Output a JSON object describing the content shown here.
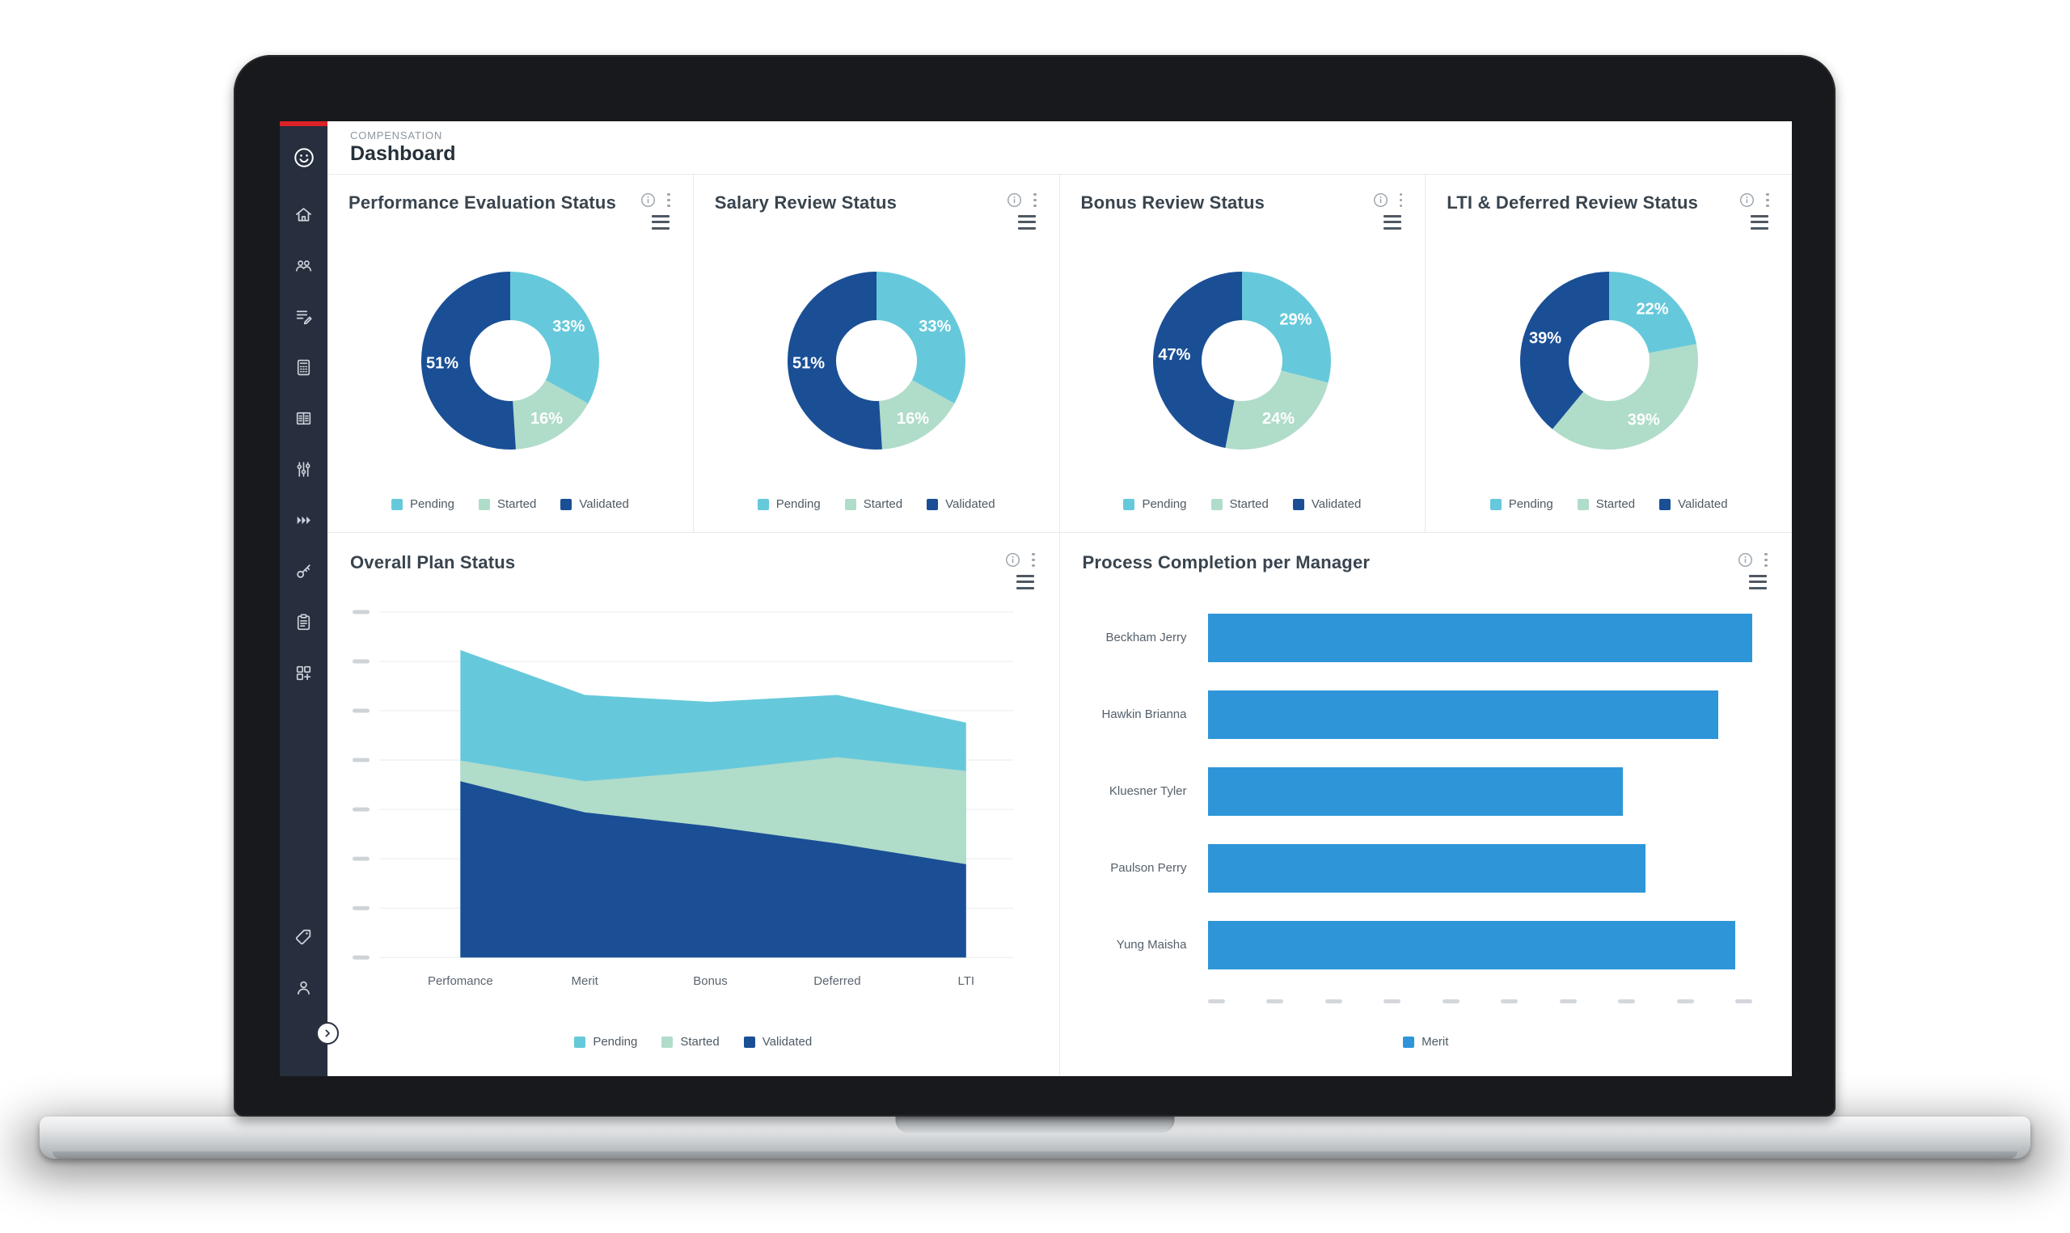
{
  "header": {
    "eyebrow": "COMPENSATION",
    "title": "Dashboard"
  },
  "colors": {
    "pending": "#66c9db",
    "started": "#b0dcca",
    "validated": "#1a4f96",
    "bar": "#2e96d8",
    "sidebar": "#272e3e",
    "accent": "#dc2127"
  },
  "legend": [
    "Pending",
    "Started",
    "Validated"
  ],
  "sidebar": {
    "items": [
      "smiley-logo",
      "home",
      "team",
      "document-review",
      "calculator",
      "table-columns",
      "filter-sliders",
      "fast-forward",
      "key",
      "clipboard",
      "widgets",
      "tag",
      "user"
    ],
    "expand": "chevron-right"
  },
  "chart_data": [
    {
      "type": "pie",
      "donut": true,
      "title": "Performance Evaluation Status",
      "labels": [
        "Pending",
        "Started",
        "Validated"
      ],
      "values": [
        33,
        16,
        51
      ],
      "value_suffix": "%",
      "colors": [
        "#66c9db",
        "#b0dcca",
        "#1a4f96"
      ],
      "legend_position": "bottom"
    },
    {
      "type": "pie",
      "donut": true,
      "title": "Salary Review Status",
      "labels": [
        "Pending",
        "Started",
        "Validated"
      ],
      "values": [
        33,
        16,
        51
      ],
      "value_suffix": "%",
      "colors": [
        "#66c9db",
        "#b0dcca",
        "#1a4f96"
      ],
      "legend_position": "bottom"
    },
    {
      "type": "pie",
      "donut": true,
      "title": "Bonus Review Status",
      "labels": [
        "Pending",
        "Started",
        "Validated"
      ],
      "values": [
        29,
        24,
        47
      ],
      "value_suffix": "%",
      "colors": [
        "#66c9db",
        "#b0dcca",
        "#1a4f96"
      ],
      "legend_position": "bottom"
    },
    {
      "type": "pie",
      "donut": true,
      "title": "LTI & Deferred Review Status",
      "labels": [
        "Pending",
        "Started",
        "Validated"
      ],
      "values": [
        22,
        39,
        39
      ],
      "value_suffix": "%",
      "colors": [
        "#66c9db",
        "#b0dcca",
        "#1a4f96"
      ],
      "legend_position": "bottom"
    },
    {
      "type": "area",
      "stacked": true,
      "title": "Overall Plan Status",
      "categories": [
        "Perfomance",
        "Merit",
        "Bonus",
        "Deferred",
        "LTI"
      ],
      "series": [
        {
          "name": "Pending",
          "values": [
            32,
            25,
            20,
            18,
            14
          ]
        },
        {
          "name": "Started",
          "values": [
            6,
            9,
            16,
            25,
            27
          ]
        },
        {
          "name": "Validated",
          "values": [
            51,
            42,
            38,
            33,
            27
          ]
        }
      ],
      "ylim": [
        0,
        100
      ],
      "grid": true,
      "legend_position": "bottom"
    },
    {
      "type": "bar",
      "orientation": "horizontal",
      "title": "Process Completion per Manager",
      "categories": [
        "Beckham Jerry",
        "Hawkin Brianna",
        "Kluesner Tyler",
        "Paulson Perry",
        "Yung Maisha"
      ],
      "series": [
        {
          "name": "Merit",
          "values": [
            97,
            91,
            74,
            78,
            94
          ]
        }
      ],
      "xlim": [
        0,
        100
      ],
      "legend_position": "bottom"
    }
  ]
}
